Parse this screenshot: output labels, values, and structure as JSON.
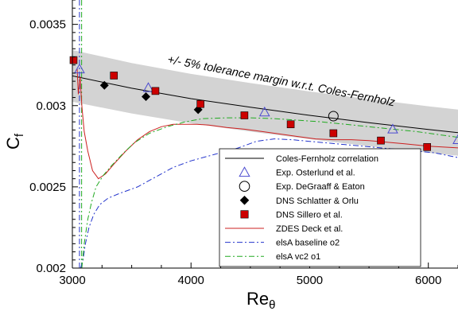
{
  "chart_data": {
    "type": "line",
    "xlabel": "Re",
    "xlabel_sub": "θ",
    "ylabel": "C",
    "ylabel_sub": "f",
    "xlim": [
      3000,
      6250
    ],
    "ylim": [
      0.002,
      0.00365
    ],
    "x_ticks": [
      3000,
      4000,
      5000,
      6000
    ],
    "x_tick_labels": [
      "3000",
      "4000",
      "5000",
      "6000"
    ],
    "y_ticks": [
      0.002,
      0.0025,
      0.003,
      0.0035
    ],
    "y_tick_labels": [
      "0.002",
      "0.0025",
      "0.003",
      "0.0035"
    ],
    "grid": false,
    "legend_position": "bottom-right",
    "annotation": "+/- 5% tolerance margin w.r.t. Coles-Fernholz",
    "tolerance_band": {
      "x": [
        3000,
        3500,
        4000,
        4500,
        5000,
        5500,
        6000,
        6250
      ],
      "upper": [
        0.003342,
        0.003262,
        0.003195,
        0.003139,
        0.003087,
        0.00304,
        0.002996,
        0.002976
      ],
      "lower": [
        0.003024,
        0.002952,
        0.002891,
        0.00284,
        0.002793,
        0.00275,
        0.00271,
        0.002692
      ],
      "color": "#d3d3d3"
    },
    "series": [
      {
        "name": "Coles-Fernholz correlation",
        "kind": "line",
        "color": "#000000",
        "dash": "",
        "x": [
          3000,
          3500,
          4000,
          4500,
          5000,
          5500,
          6000,
          6250
        ],
        "y": [
          0.003183,
          0.003107,
          0.003043,
          0.00299,
          0.00294,
          0.002895,
          0.002853,
          0.002834
        ]
      },
      {
        "name": "Exp. Osterlund et al.",
        "kind": "marker",
        "marker": "triangle",
        "color": "#4a4ad0",
        "x": [
          3060,
          3640,
          4620,
          5700,
          6250
        ],
        "y": [
          0.003225,
          0.00311,
          0.00296,
          0.002855,
          0.00279
        ]
      },
      {
        "name": "Exp. DeGraaff & Eaton",
        "kind": "marker",
        "marker": "circle",
        "color": "#000000",
        "x": [
          5200
        ],
        "y": [
          0.002935
        ]
      },
      {
        "name": "DNS Schlatter & Orlu",
        "kind": "marker",
        "marker": "diamond",
        "color": "#000000",
        "x": [
          3270,
          3620,
          4060
        ],
        "y": [
          0.003125,
          0.003055,
          0.002975
        ]
      },
      {
        "name": "DNS Sillero et al.",
        "kind": "marker",
        "marker": "square",
        "color": "#cc0000",
        "x": [
          3010,
          3350,
          3700,
          4080,
          4450,
          4840,
          5200,
          5600,
          5990
        ],
        "y": [
          0.00328,
          0.003185,
          0.00309,
          0.00301,
          0.00294,
          0.002885,
          0.00283,
          0.002785,
          0.002745
        ]
      },
      {
        "name": "ZDES Deck et al.",
        "kind": "line",
        "color": "#cc2020",
        "dash": "",
        "x": [
          3040,
          3050,
          3065,
          3080,
          3100,
          3130,
          3170,
          3220,
          3280,
          3350,
          3450,
          3550,
          3650,
          3750,
          3850,
          3950,
          4050,
          4150,
          4300,
          4450,
          4600,
          4750,
          4900,
          5050,
          5200,
          5350,
          5500,
          5650,
          5800,
          6000,
          6250
        ],
        "y": [
          0.00323,
          0.00307,
          0.00318,
          0.003,
          0.00284,
          0.00272,
          0.0026,
          0.00255,
          0.00258,
          0.00264,
          0.00272,
          0.00279,
          0.00284,
          0.00287,
          0.002885,
          0.002885,
          0.002885,
          0.00288,
          0.002865,
          0.002855,
          0.00284,
          0.002825,
          0.00281,
          0.002795,
          0.00279,
          0.00279,
          0.002785,
          0.002775,
          0.002765,
          0.00275,
          0.00274
        ]
      },
      {
        "name": "elsA baseline o2",
        "kind": "line",
        "color": "#2233cc",
        "dash": "7,3,2,3",
        "x": [
          3070,
          3090,
          3110,
          3140,
          3180,
          3230,
          3300,
          3400,
          3550,
          3700,
          3850,
          4000,
          4200,
          4400,
          4550,
          4700,
          4850,
          5000,
          5150,
          5300,
          5450,
          5600,
          5750,
          5900,
          6050,
          6250
        ],
        "y": [
          0.002,
          0.00205,
          0.00215,
          0.00225,
          0.00233,
          0.00239,
          0.00243,
          0.00246,
          0.0025,
          0.00256,
          0.00262,
          0.00266,
          0.0027,
          0.00274,
          0.00278,
          0.002795,
          0.00279,
          0.00278,
          0.00277,
          0.00276,
          0.00275,
          0.00274,
          0.00273,
          0.00272,
          0.00271,
          0.00268
        ]
      },
      {
        "name": "elsA vc2 o1",
        "kind": "line",
        "color": "#22aa22",
        "dash": "7,3,2,3",
        "x": [
          3080,
          3100,
          3130,
          3160,
          3200,
          3260,
          3330,
          3420,
          3520,
          3650,
          3800,
          3950,
          4100,
          4300,
          4500,
          4700,
          4900,
          5100,
          5300,
          5500,
          5700,
          5900,
          6100,
          6250
        ],
        "y": [
          0.002,
          0.00215,
          0.0023,
          0.0024,
          0.0025,
          0.00257,
          0.00263,
          0.0027,
          0.00277,
          0.00283,
          0.00287,
          0.0029,
          0.00292,
          0.002925,
          0.002925,
          0.00292,
          0.00291,
          0.0029,
          0.002885,
          0.00287,
          0.002855,
          0.00284,
          0.00282,
          0.002805
        ]
      }
    ],
    "legend": {
      "entries": [
        "Coles-Fernholz correlation",
        "Exp. Osterlund et al.",
        "Exp. DeGraaff & Eaton",
        "DNS Schlatter & Orlu",
        "DNS Sillero et al.",
        "ZDES Deck et al.",
        "elsA baseline o2",
        "elsA vc2 o1"
      ]
    },
    "vertical_lines": [
      {
        "x": 3060,
        "color": "#2233cc",
        "dash": "7,3,2,3"
      },
      {
        "x": 3078,
        "color": "#22aa22",
        "dash": "7,3,2,3"
      }
    ]
  }
}
